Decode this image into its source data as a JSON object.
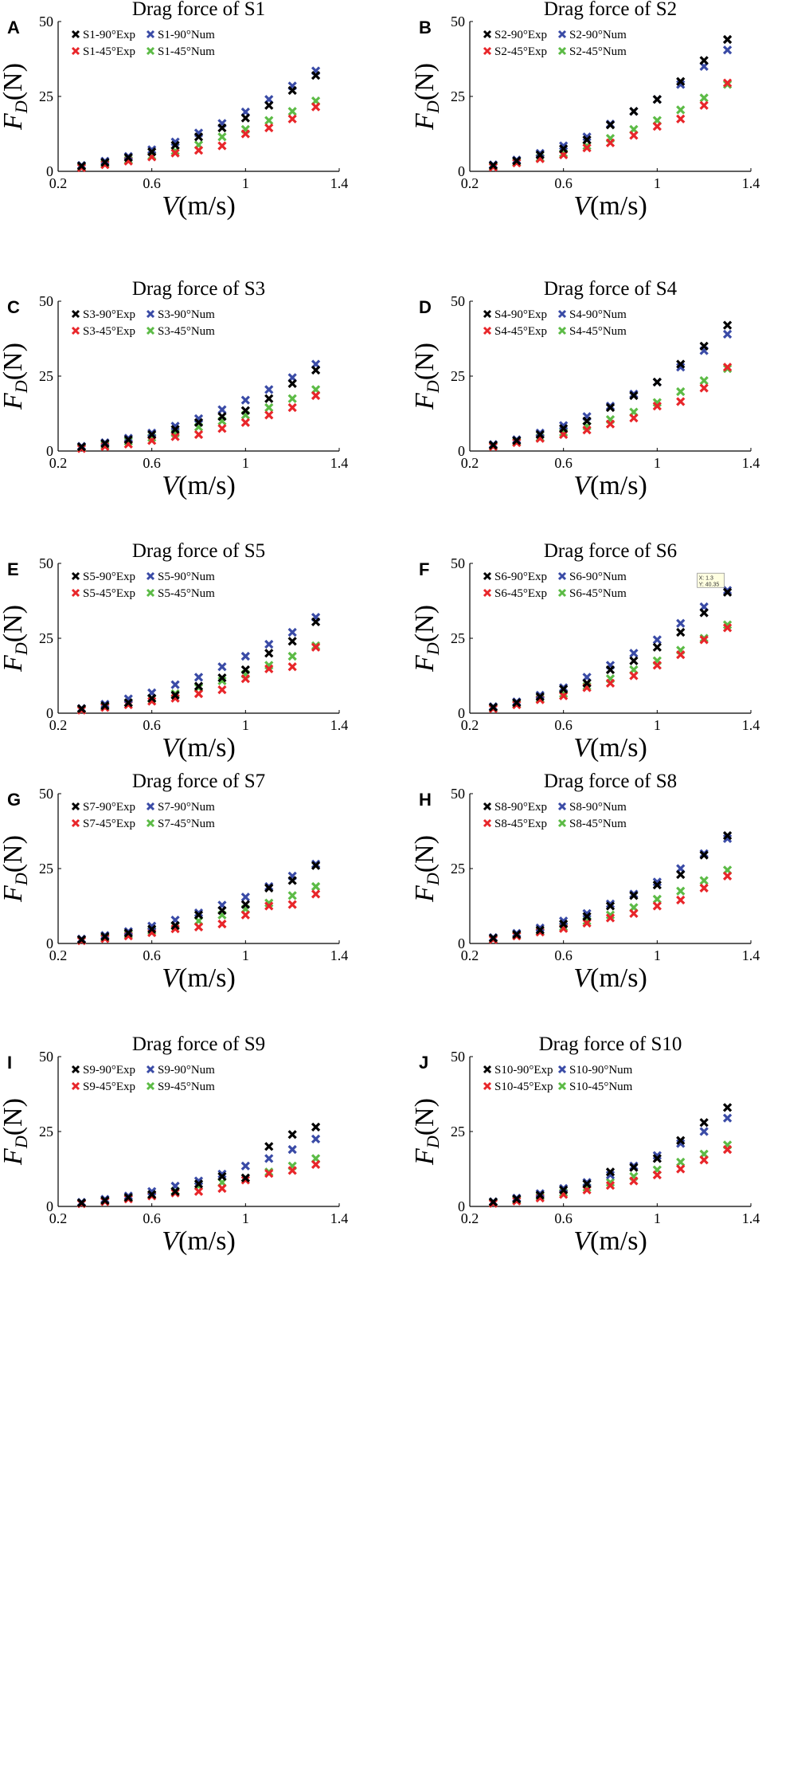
{
  "figure": {
    "tooltip": {
      "panel": "F",
      "x_label": "X: 1.3",
      "y_label": "Y: 40.35",
      "x": 1.3,
      "y": 40.35
    }
  },
  "colors": {
    "exp90": "#000000",
    "num90": "#3a4ba6",
    "exp45": "#e8262a",
    "num45": "#5cbb46"
  },
  "chart_data": [
    {
      "panel": "A",
      "title": "Drag force of S1",
      "type": "scatter",
      "xlabel": "V(m/s)",
      "ylabel": "F_D(N)",
      "xlim": [
        0.2,
        1.4
      ],
      "ylim": [
        0,
        50
      ],
      "xticks": [
        "0.2",
        "0.6",
        "1",
        "1.4"
      ],
      "yticks": [
        "0",
        "25",
        "50"
      ],
      "x": [
        0.3,
        0.4,
        0.5,
        0.6,
        0.7,
        0.8,
        0.9,
        1.0,
        1.1,
        1.2,
        1.3
      ],
      "series": [
        {
          "name": "S1-90°Exp",
          "color": "exp90",
          "values": [
            1.8,
            3.0,
            4.6,
            6.5,
            8.7,
            11.5,
            14.5,
            17.8,
            22.0,
            27.0,
            32.0
          ]
        },
        {
          "name": "S1-90°Num",
          "color": "num90",
          "values": [
            2.0,
            3.4,
            5.0,
            7.2,
            9.8,
            12.8,
            16.0,
            19.8,
            24.0,
            28.5,
            33.5
          ]
        },
        {
          "name": "S1-45°Exp",
          "color": "exp45",
          "values": [
            1.2,
            2.2,
            3.4,
            4.8,
            6.1,
            7.0,
            8.5,
            12.5,
            14.5,
            17.5,
            21.5
          ]
        },
        {
          "name": "S1-45°Num",
          "color": "num45",
          "values": [
            1.4,
            2.5,
            3.8,
            5.2,
            6.8,
            8.8,
            11.5,
            14.0,
            17.0,
            20.0,
            23.5
          ]
        }
      ]
    },
    {
      "panel": "B",
      "title": "Drag force of S2",
      "type": "scatter",
      "xlabel": "V(m/s)",
      "ylabel": "F_D(N)",
      "xlim": [
        0.2,
        1.4
      ],
      "ylim": [
        0,
        50
      ],
      "xticks": [
        "0.2",
        "0.6",
        "1",
        "1.4"
      ],
      "yticks": [
        "0",
        "25",
        "50"
      ],
      "x": [
        0.3,
        0.4,
        0.5,
        0.6,
        0.7,
        0.8,
        0.9,
        1.0,
        1.1,
        1.2,
        1.3
      ],
      "series": [
        {
          "name": "S2-90°Exp",
          "color": "exp90",
          "values": [
            2.0,
            3.5,
            5.5,
            7.5,
            10.5,
            15.5,
            20.0,
            24.0,
            30.0,
            37.0,
            44.0
          ]
        },
        {
          "name": "S2-90°Num",
          "color": "num90",
          "values": [
            2.2,
            3.8,
            6.0,
            8.5,
            11.5,
            15.8,
            20.0,
            24.0,
            29.0,
            35.0,
            40.5
          ]
        },
        {
          "name": "S2-45°Exp",
          "color": "exp45",
          "values": [
            1.4,
            2.8,
            4.2,
            5.5,
            7.8,
            9.5,
            12.0,
            15.0,
            17.5,
            22.0,
            29.5
          ]
        },
        {
          "name": "S2-45°Num",
          "color": "num45",
          "values": [
            1.6,
            3.0,
            4.5,
            6.0,
            8.5,
            11.0,
            14.0,
            17.0,
            20.5,
            24.5,
            29.0
          ]
        }
      ]
    },
    {
      "panel": "C",
      "title": "Drag force of S3",
      "type": "scatter",
      "xlabel": "V(m/s)",
      "ylabel": "F_D(N)",
      "xlim": [
        0.2,
        1.4
      ],
      "ylim": [
        0,
        50
      ],
      "xticks": [
        "0.2",
        "0.6",
        "1",
        "1.4"
      ],
      "yticks": [
        "0",
        "25",
        "50"
      ],
      "x": [
        0.3,
        0.4,
        0.5,
        0.6,
        0.7,
        0.8,
        0.9,
        1.0,
        1.1,
        1.2,
        1.3
      ],
      "series": [
        {
          "name": "S3-90°Exp",
          "color": "exp90",
          "values": [
            1.4,
            2.5,
            3.8,
            5.5,
            7.2,
            9.5,
            11.5,
            13.5,
            17.5,
            22.5,
            27.0
          ]
        },
        {
          "name": "S3-90°Num",
          "color": "num90",
          "values": [
            1.6,
            2.8,
            4.3,
            6.0,
            8.3,
            10.8,
            13.8,
            17.0,
            20.5,
            24.5,
            29.0
          ]
        },
        {
          "name": "S3-45°Exp",
          "color": "exp45",
          "values": [
            0.8,
            1.5,
            2.3,
            3.5,
            4.8,
            5.5,
            7.5,
            9.5,
            12.0,
            14.5,
            18.5
          ]
        },
        {
          "name": "S3-45°Num",
          "color": "num45",
          "values": [
            1.0,
            2.0,
            3.2,
            4.5,
            6.0,
            8.0,
            10.0,
            12.0,
            14.5,
            17.5,
            20.5
          ]
        }
      ]
    },
    {
      "panel": "D",
      "title": "Drag force of S4",
      "type": "scatter",
      "xlabel": "V(m/s)",
      "ylabel": "F_D(N)",
      "xlim": [
        0.2,
        1.4
      ],
      "ylim": [
        0,
        50
      ],
      "xticks": [
        "0.2",
        "0.6",
        "1",
        "1.4"
      ],
      "yticks": [
        "0",
        "25",
        "50"
      ],
      "x": [
        0.3,
        0.4,
        0.5,
        0.6,
        0.7,
        0.8,
        0.9,
        1.0,
        1.1,
        1.2,
        1.3
      ],
      "series": [
        {
          "name": "S4-90°Exp",
          "color": "exp90",
          "values": [
            2.0,
            3.5,
            5.5,
            7.5,
            10.0,
            14.5,
            18.5,
            23.0,
            29.0,
            35.0,
            42.0
          ]
        },
        {
          "name": "S4-90°Num",
          "color": "num90",
          "values": [
            2.2,
            3.8,
            6.0,
            8.5,
            11.5,
            15.0,
            19.0,
            23.0,
            28.0,
            33.5,
            39.0
          ]
        },
        {
          "name": "S4-45°Exp",
          "color": "exp45",
          "values": [
            1.5,
            2.8,
            4.2,
            5.5,
            7.0,
            9.0,
            11.0,
            15.0,
            16.5,
            21.0,
            28.0
          ]
        },
        {
          "name": "S4-45°Num",
          "color": "num45",
          "values": [
            1.6,
            3.0,
            4.5,
            6.2,
            8.3,
            10.5,
            13.0,
            16.2,
            19.8,
            23.5,
            27.5
          ]
        }
      ]
    },
    {
      "panel": "E",
      "title": "Drag force of S5",
      "type": "scatter",
      "xlabel": "V(m/s)",
      "ylabel": "F_D(N)",
      "xlim": [
        0.2,
        1.4
      ],
      "ylim": [
        0,
        50
      ],
      "xticks": [
        "0.2",
        "0.6",
        "1",
        "1.4"
      ],
      "yticks": [
        "0",
        "25",
        "50"
      ],
      "x": [
        0.3,
        0.4,
        0.5,
        0.6,
        0.7,
        0.8,
        0.9,
        1.0,
        1.1,
        1.2,
        1.3
      ],
      "series": [
        {
          "name": "S5-90°Exp",
          "color": "exp90",
          "values": [
            1.5,
            2.5,
            3.5,
            5.0,
            6.0,
            9.0,
            11.8,
            14.5,
            20.0,
            24.0,
            30.5
          ]
        },
        {
          "name": "S5-90°Num",
          "color": "num90",
          "values": [
            1.6,
            3.0,
            4.8,
            6.8,
            9.5,
            12.0,
            15.5,
            19.0,
            23.0,
            27.0,
            32.0
          ]
        },
        {
          "name": "S5-45°Exp",
          "color": "exp45",
          "values": [
            1.0,
            1.9,
            2.8,
            4.0,
            5.0,
            6.5,
            7.8,
            11.5,
            14.8,
            15.5,
            22.0
          ]
        },
        {
          "name": "S5-45°Num",
          "color": "num45",
          "values": [
            1.2,
            2.2,
            3.5,
            4.8,
            6.5,
            8.5,
            10.8,
            13.0,
            16.0,
            19.0,
            22.5
          ]
        }
      ]
    },
    {
      "panel": "F",
      "title": "Drag force of S6",
      "type": "scatter",
      "xlabel": "V(m/s)",
      "ylabel": "F_D(N)",
      "xlim": [
        0.2,
        1.4
      ],
      "ylim": [
        0,
        50
      ],
      "xticks": [
        "0.2",
        "0.6",
        "1",
        "1.4"
      ],
      "yticks": [
        "0",
        "25",
        "50"
      ],
      "x": [
        0.3,
        0.4,
        0.5,
        0.6,
        0.7,
        0.8,
        0.9,
        1.0,
        1.1,
        1.2,
        1.3
      ],
      "series": [
        {
          "name": "S6-90°Exp",
          "color": "exp90",
          "values": [
            2.0,
            3.5,
            5.5,
            8.0,
            10.0,
            14.5,
            17.5,
            22.0,
            27.0,
            33.5,
            40.35
          ]
        },
        {
          "name": "S6-90°Num",
          "color": "num90",
          "values": [
            2.2,
            3.8,
            6.0,
            8.5,
            12.0,
            16.0,
            20.0,
            24.5,
            30.0,
            35.5,
            41.0
          ]
        },
        {
          "name": "S6-45°Exp",
          "color": "exp45",
          "values": [
            1.5,
            2.8,
            4.5,
            5.8,
            8.5,
            10.0,
            12.5,
            16.0,
            19.5,
            24.5,
            28.5
          ]
        },
        {
          "name": "S6-45°Num",
          "color": "num45",
          "values": [
            1.6,
            3.0,
            4.8,
            6.5,
            9.0,
            11.5,
            14.5,
            17.5,
            21.0,
            25.0,
            29.5
          ]
        }
      ]
    },
    {
      "panel": "G",
      "title": "Drag force of S7",
      "type": "scatter",
      "xlabel": "V(m/s)",
      "ylabel": "F_D(N)",
      "xlim": [
        0.2,
        1.4
      ],
      "ylim": [
        0,
        50
      ],
      "xticks": [
        "0.2",
        "0.6",
        "1",
        "1.4"
      ],
      "yticks": [
        "0",
        "25",
        "50"
      ],
      "x": [
        0.3,
        0.4,
        0.5,
        0.6,
        0.7,
        0.8,
        0.9,
        1.0,
        1.1,
        1.2,
        1.3
      ],
      "series": [
        {
          "name": "S7-90°Exp",
          "color": "exp90",
          "values": [
            1.3,
            2.3,
            3.5,
            4.8,
            6.0,
            9.5,
            11.0,
            13.0,
            18.5,
            21.0,
            26.0
          ]
        },
        {
          "name": "S7-90°Num",
          "color": "num90",
          "values": [
            1.5,
            2.7,
            4.0,
            5.8,
            7.8,
            10.2,
            12.8,
            15.5,
            19.0,
            22.5,
            26.5
          ]
        },
        {
          "name": "S7-45°Exp",
          "color": "exp45",
          "values": [
            0.9,
            1.6,
            2.5,
            3.6,
            4.9,
            5.5,
            6.5,
            9.5,
            12.5,
            13.0,
            16.5
          ]
        },
        {
          "name": "S7-45°Num",
          "color": "num45",
          "values": [
            1.0,
            1.9,
            3.0,
            4.2,
            5.8,
            7.5,
            9.5,
            11.5,
            13.5,
            16.0,
            19.0
          ]
        }
      ]
    },
    {
      "panel": "H",
      "title": "Drag force of S8",
      "type": "scatter",
      "xlabel": "V(m/s)",
      "ylabel": "F_D(N)",
      "xlim": [
        0.2,
        1.4
      ],
      "ylim": [
        0,
        50
      ],
      "xticks": [
        "0.2",
        "0.6",
        "1",
        "1.4"
      ],
      "yticks": [
        "0",
        "25",
        "50"
      ],
      "x": [
        0.3,
        0.4,
        0.5,
        0.6,
        0.7,
        0.8,
        0.9,
        1.0,
        1.1,
        1.2,
        1.3
      ],
      "series": [
        {
          "name": "S8-90°Exp",
          "color": "exp90",
          "values": [
            1.8,
            3.0,
            4.5,
            6.5,
            9.0,
            12.5,
            16.0,
            19.5,
            23.0,
            29.5,
            36.0
          ]
        },
        {
          "name": "S8-90°Num",
          "color": "num90",
          "values": [
            2.0,
            3.4,
            5.2,
            7.5,
            10.0,
            13.2,
            16.5,
            20.5,
            25.0,
            30.0,
            35.0
          ]
        },
        {
          "name": "S8-45°Exp",
          "color": "exp45",
          "values": [
            1.3,
            2.5,
            3.8,
            5.0,
            6.8,
            8.5,
            10.0,
            12.5,
            14.5,
            18.5,
            22.5
          ]
        },
        {
          "name": "S8-45°Num",
          "color": "num45",
          "values": [
            1.4,
            2.6,
            4.0,
            5.5,
            7.5,
            9.5,
            12.0,
            14.8,
            17.5,
            21.0,
            24.5
          ]
        }
      ]
    },
    {
      "panel": "I",
      "title": "Drag force of S9",
      "type": "scatter",
      "xlabel": "V(m/s)",
      "ylabel": "F_D(N)",
      "xlim": [
        0.2,
        1.4
      ],
      "ylim": [
        0,
        50
      ],
      "xticks": [
        "0.2",
        "0.6",
        "1",
        "1.4"
      ],
      "yticks": [
        "0",
        "25",
        "50"
      ],
      "x": [
        0.3,
        0.4,
        0.5,
        0.6,
        0.7,
        0.8,
        0.9,
        1.0,
        1.1,
        1.2,
        1.3
      ],
      "series": [
        {
          "name": "S9-90°Exp",
          "color": "exp90",
          "values": [
            1.2,
            2.0,
            3.0,
            4.0,
            5.0,
            7.5,
            10.0,
            9.5,
            20.0,
            24.0,
            26.5
          ]
        },
        {
          "name": "S9-90°Num",
          "color": "num90",
          "values": [
            1.4,
            2.4,
            3.5,
            5.0,
            6.8,
            8.5,
            10.8,
            13.5,
            16.0,
            19.0,
            22.5
          ]
        },
        {
          "name": "S9-45°Exp",
          "color": "exp45",
          "values": [
            0.9,
            1.6,
            2.5,
            3.5,
            4.5,
            5.0,
            6.0,
            8.8,
            11.0,
            12.0,
            14.0
          ]
        },
        {
          "name": "S9-45°Num",
          "color": "num45",
          "values": [
            1.0,
            1.8,
            2.8,
            3.8,
            5.2,
            6.8,
            8.0,
            9.5,
            11.5,
            13.5,
            16.0
          ]
        }
      ]
    },
    {
      "panel": "J",
      "title": "Drag force of S10",
      "type": "scatter",
      "xlabel": "V(m/s)",
      "ylabel": "F_D(N)",
      "xlim": [
        0.2,
        1.4
      ],
      "ylim": [
        0,
        50
      ],
      "xticks": [
        "0.2",
        "0.6",
        "1",
        "1.4"
      ],
      "yticks": [
        "0",
        "25",
        "50"
      ],
      "x": [
        0.3,
        0.4,
        0.5,
        0.6,
        0.7,
        0.8,
        0.9,
        1.0,
        1.1,
        1.2,
        1.3
      ],
      "series": [
        {
          "name": "S10-90°Exp",
          "color": "exp90",
          "values": [
            1.5,
            2.5,
            3.8,
            5.5,
            7.5,
            11.5,
            13.0,
            16.0,
            22.0,
            28.0,
            33.0
          ]
        },
        {
          "name": "S10-90°Num",
          "color": "num90",
          "values": [
            1.6,
            2.8,
            4.3,
            6.0,
            8.0,
            10.5,
            13.5,
            17.0,
            21.0,
            25.0,
            29.5
          ]
        },
        {
          "name": "S10-45°Exp",
          "color": "exp45",
          "values": [
            1.0,
            1.8,
            2.8,
            4.0,
            5.5,
            7.0,
            8.5,
            10.5,
            12.5,
            15.5,
            19.0
          ]
        },
        {
          "name": "S10-45°Num",
          "color": "num45",
          "values": [
            1.2,
            2.2,
            3.3,
            4.6,
            6.3,
            8.0,
            10.0,
            12.2,
            14.8,
            17.5,
            20.5
          ]
        }
      ]
    }
  ]
}
